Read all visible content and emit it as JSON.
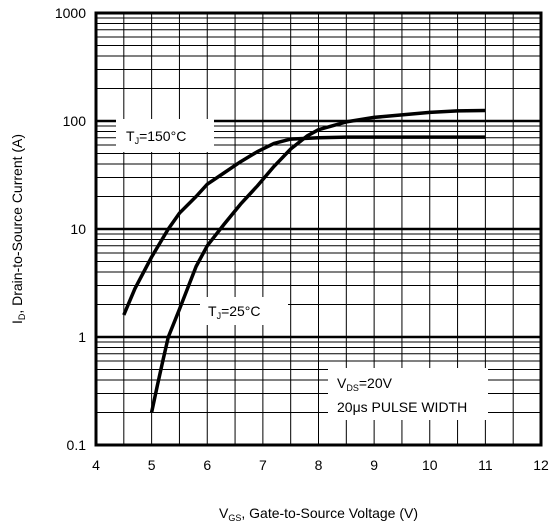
{
  "chart_data": {
    "type": "line",
    "x_scale": "linear",
    "y_scale": "log",
    "xlim": [
      4,
      12
    ],
    "ylim": [
      0.1,
      1000
    ],
    "grid": true,
    "x_ticks": [
      "4",
      "5",
      "6",
      "7",
      "8",
      "9",
      "10",
      "11",
      "12"
    ],
    "y_ticks": [
      "0.1",
      "1",
      "10",
      "100",
      "1000"
    ],
    "xlabel": {
      "main": "V",
      "sub": "GS",
      "rest": ", Gate-to-Source Voltage (V)"
    },
    "ylabel": {
      "main": "I",
      "sub": "D",
      "rest": ", Drain-to-Source Current (A)"
    },
    "series": [
      {
        "label": {
          "main": "T",
          "sub": "J",
          "rest": "=150°C"
        },
        "x": [
          4.5,
          4.7,
          5.0,
          5.3,
          5.5,
          5.8,
          6.0,
          6.3,
          6.6,
          6.9,
          7.2,
          7.5,
          8.0,
          8.5,
          9.0,
          9.5,
          10.0,
          10.5,
          11.0
        ],
        "y": [
          1.6,
          2.8,
          5.5,
          10,
          14,
          20,
          26,
          33,
          42,
          52,
          62,
          68,
          70,
          71,
          71,
          71,
          71,
          71,
          71
        ]
      },
      {
        "label": {
          "main": "T",
          "sub": "J",
          "rest": "=25°C"
        },
        "x": [
          5.0,
          5.1,
          5.2,
          5.3,
          5.5,
          5.8,
          6.0,
          6.3,
          6.6,
          6.9,
          7.2,
          7.5,
          7.8,
          8.0,
          8.5,
          9.0,
          9.5,
          10.0,
          10.5,
          11.0
        ],
        "y": [
          0.2,
          0.35,
          0.6,
          1.0,
          1.8,
          4.5,
          7,
          11,
          17,
          25,
          38,
          55,
          73,
          83,
          98,
          108,
          114,
          120,
          124,
          125
        ]
      }
    ],
    "annotation": {
      "line1": {
        "main": "V",
        "sub": "DS",
        "rest": "=20V"
      },
      "line2": {
        "pre": "20",
        "mu": "μ",
        "rest": "s PULSE WIDTH"
      }
    }
  }
}
